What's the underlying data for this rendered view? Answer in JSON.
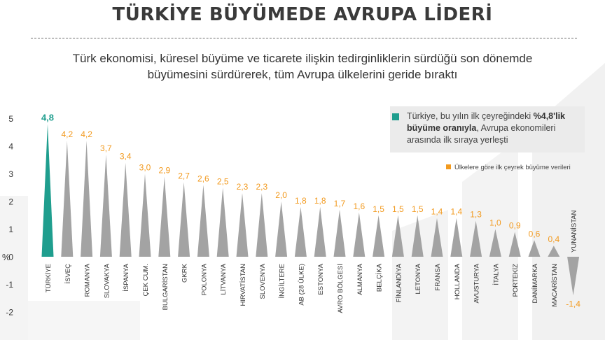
{
  "header": {
    "title": "TÜRKİYE BÜYÜMEDE AVRUPA LİDERİ",
    "subtitle": "Türk ekonomisi, küresel büyüme ve ticarete ilişkin tedirginliklerin sürdüğü son dönemde büyümesini sürdürerek, tüm Avrupa ülkelerini geride bıraktı"
  },
  "callout": {
    "text_before": "Türkiye, bu yılın ilk çeyreğindeki ",
    "text_bold": "%4,8'lik büyüme oranıyla",
    "text_after": ", Avrupa ekonomileri arasında ilk sıraya yerleşti"
  },
  "legend": {
    "label": "Ülkelere göre ilk çeyrek büyüme verileri"
  },
  "colors": {
    "highlight": "#1f9e8e",
    "bars": "#a3a3a3",
    "value_labels": "#f29a1f",
    "text": "#333333"
  },
  "chart_data": {
    "type": "bar",
    "ylabel": "%",
    "ylim": [
      -2,
      5
    ],
    "yticks": [
      5,
      4,
      3,
      2,
      1,
      0,
      -1,
      -2
    ],
    "yticklabels": [
      "5",
      "4",
      "3",
      "2",
      "1",
      "0",
      "-1",
      "-2"
    ],
    "grid": false,
    "bar_shape": "triangle",
    "highlight_category": "TÜRKİYE",
    "categories": [
      "TÜRKİYE",
      "İSVEÇ",
      "ROMANYA",
      "SLOVAKYA",
      "İSPANYA",
      "ÇEK CUM.",
      "BULGARİSTAN",
      "GKRK",
      "POLONYA",
      "LİTVANYA",
      "HIRVATİSTAN",
      "SLOVENYA",
      "İNGİLTERE",
      "AB (28 ÜLKE)",
      "ESTONYA",
      "AVRO BÖLGESİ",
      "ALMANYA",
      "BELÇİKA",
      "FİNLANDİYA",
      "LETONYA",
      "FRANSA",
      "HOLLANDA",
      "AVUSTURYA",
      "İTALYA",
      "PORTEKİZ",
      "DANİMARKA",
      "MACARİSTAN",
      "YUNANİSTAN"
    ],
    "values": [
      4.8,
      4.2,
      4.2,
      3.7,
      3.4,
      3.0,
      2.9,
      2.7,
      2.6,
      2.5,
      2.3,
      2.3,
      2.0,
      1.8,
      1.8,
      1.7,
      1.6,
      1.5,
      1.5,
      1.5,
      1.4,
      1.4,
      1.3,
      1.0,
      0.9,
      0.6,
      0.4,
      -1.4
    ],
    "value_labels": [
      "4,8",
      "4,2",
      "4,2",
      "3,7",
      "3,4",
      "3,0",
      "2,9",
      "2,7",
      "2,6",
      "2,5",
      "2,3",
      "2,3",
      "2,0",
      "1,8",
      "1,8",
      "1,7",
      "1,6",
      "1,5",
      "1,5",
      "1,5",
      "1,4",
      "1,4",
      "1,3",
      "1,0",
      "0,9",
      "0,6",
      "0,4",
      "-1,4"
    ]
  }
}
